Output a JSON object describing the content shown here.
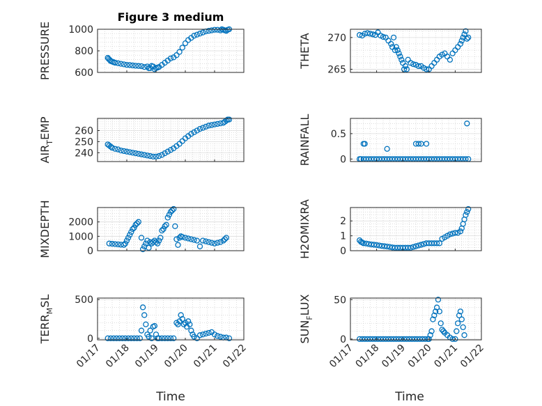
{
  "figure": {
    "title": "Figure 3 medium",
    "xlabel": "Time",
    "marker_color": "#0072BD",
    "axis_color": "#262626",
    "grid_color": "#c8c8c8"
  },
  "chart_data": [
    {
      "type": "scatter",
      "name": "pressure",
      "ylabel_text": "PRESSURE",
      "ylabel_sub": "",
      "ylabel_tail": "",
      "ylim": [
        600,
        1000
      ],
      "yticks": [
        600,
        800,
        1000
      ],
      "xlim": [
        0,
        5
      ],
      "show_x_ticklabels": false,
      "grid": true,
      "x": [
        0.35,
        0.38,
        0.42,
        0.45,
        0.5,
        0.55,
        0.6,
        0.7,
        0.8,
        0.9,
        1.0,
        1.1,
        1.2,
        1.3,
        1.4,
        1.5,
        1.6,
        1.7,
        1.75,
        1.8,
        1.85,
        1.9,
        1.95,
        2.0,
        2.05,
        2.1,
        2.2,
        2.3,
        2.4,
        2.5,
        2.6,
        2.7,
        2.8,
        2.9,
        3.0,
        3.1,
        3.2,
        3.3,
        3.4,
        3.5,
        3.6,
        3.7,
        3.8,
        3.9,
        4.0,
        4.1,
        4.2,
        4.25,
        4.3,
        4.35,
        4.4,
        4.45,
        4.5
      ],
      "y": [
        735,
        725,
        715,
        705,
        700,
        695,
        690,
        685,
        680,
        675,
        670,
        668,
        665,
        662,
        660,
        658,
        650,
        655,
        640,
        640,
        660,
        655,
        630,
        640,
        645,
        650,
        670,
        690,
        710,
        730,
        740,
        760,
        790,
        830,
        870,
        900,
        920,
        940,
        950,
        960,
        970,
        980,
        985,
        990,
        995,
        995,
        990,
        1000,
        995,
        990,
        985,
        995,
        1000
      ]
    },
    {
      "type": "scatter",
      "name": "theta",
      "ylabel_text": "THETA",
      "ylabel_sub": "",
      "ylabel_tail": "",
      "ylim": [
        264.5,
        271.3
      ],
      "yticks": [
        265,
        270
      ],
      "xlim": [
        0,
        5
      ],
      "show_x_ticklabels": false,
      "grid": true,
      "x": [
        0.35,
        0.45,
        0.55,
        0.65,
        0.75,
        0.85,
        0.95,
        1.05,
        1.15,
        1.25,
        1.35,
        1.45,
        1.55,
        1.6,
        1.65,
        1.7,
        1.75,
        1.8,
        1.85,
        1.9,
        1.95,
        2.0,
        2.05,
        2.1,
        2.15,
        2.2,
        2.3,
        2.4,
        2.5,
        2.6,
        2.7,
        2.8,
        2.9,
        3.0,
        3.1,
        3.2,
        3.3,
        3.4,
        3.5,
        3.6,
        3.7,
        3.8,
        3.9,
        4.0,
        4.1,
        4.2,
        4.25,
        4.3,
        4.35,
        4.4,
        4.45,
        4.5
      ],
      "y": [
        270.4,
        270.3,
        270.6,
        270.7,
        270.6,
        270.5,
        270.4,
        270.8,
        270.3,
        270.1,
        270.0,
        269.5,
        269.0,
        268.5,
        270.0,
        268.0,
        268.5,
        268.0,
        267.5,
        267.0,
        266.5,
        266.0,
        265.0,
        265.5,
        265.0,
        266.5,
        266.0,
        265.8,
        265.7,
        265.5,
        265.5,
        265.2,
        265.0,
        265.0,
        265.5,
        266.0,
        266.5,
        267.0,
        267.3,
        267.5,
        267.0,
        266.5,
        267.5,
        268.0,
        268.5,
        269.0,
        269.5,
        270.0,
        270.5,
        271.0,
        269.8,
        270.0
      ]
    },
    {
      "type": "scatter",
      "name": "air_temp",
      "ylabel_text": "AIR",
      "ylabel_sub": "T",
      "ylabel_tail": "EMP",
      "ylim": [
        232,
        271
      ],
      "yticks": [
        240,
        250,
        260
      ],
      "xlim": [
        0,
        5
      ],
      "show_x_ticklabels": false,
      "grid": true,
      "x": [
        0.35,
        0.4,
        0.45,
        0.5,
        0.6,
        0.7,
        0.8,
        0.9,
        1.0,
        1.1,
        1.2,
        1.3,
        1.4,
        1.5,
        1.6,
        1.7,
        1.8,
        1.9,
        2.0,
        2.1,
        2.2,
        2.3,
        2.4,
        2.5,
        2.6,
        2.7,
        2.8,
        2.9,
        3.0,
        3.1,
        3.2,
        3.3,
        3.4,
        3.5,
        3.6,
        3.7,
        3.8,
        3.9,
        4.0,
        4.1,
        4.2,
        4.3,
        4.35,
        4.4,
        4.45,
        4.5
      ],
      "y": [
        247.5,
        246.5,
        245.5,
        244.5,
        243.5,
        243.0,
        242.0,
        241.5,
        241.0,
        240.5,
        240.0,
        239.5,
        239.0,
        238.5,
        238.0,
        237.5,
        237.0,
        236.5,
        236.5,
        237.0,
        238.0,
        239.5,
        241.0,
        242.5,
        244.0,
        246.0,
        248.0,
        250.5,
        253.0,
        255.0,
        257.0,
        258.5,
        260.0,
        261.5,
        262.5,
        263.5,
        264.5,
        265.0,
        265.5,
        266.0,
        266.5,
        267.0,
        268.0,
        269.0,
        270.0,
        270.0
      ]
    },
    {
      "type": "scatter",
      "name": "rainfall",
      "ylabel_text": "RAINFALL",
      "ylabel_sub": "",
      "ylabel_tail": "",
      "ylim": [
        -0.05,
        0.8
      ],
      "yticks": [
        0,
        0.5
      ],
      "xlim": [
        0,
        5
      ],
      "show_x_ticklabels": false,
      "grid": true,
      "x": [
        0.35,
        0.4,
        0.5,
        0.6,
        0.7,
        0.8,
        0.9,
        1.0,
        1.1,
        1.2,
        1.3,
        1.4,
        1.5,
        1.6,
        1.7,
        1.8,
        1.9,
        2.0,
        2.1,
        2.2,
        2.3,
        2.4,
        2.5,
        2.6,
        2.7,
        2.8,
        2.9,
        3.0,
        3.1,
        3.2,
        3.3,
        3.4,
        3.5,
        3.6,
        3.7,
        3.8,
        3.9,
        4.0,
        4.1,
        4.2,
        4.3,
        4.4,
        4.5,
        0.5,
        0.55,
        1.4,
        2.5,
        2.6,
        2.7,
        2.9,
        4.45
      ],
      "y": [
        0,
        0,
        0,
        0,
        0,
        0,
        0,
        0,
        0,
        0,
        0,
        0,
        0,
        0,
        0,
        0,
        0,
        0,
        0,
        0,
        0,
        0,
        0,
        0,
        0,
        0,
        0,
        0,
        0,
        0,
        0,
        0,
        0,
        0,
        0,
        0,
        0,
        0,
        0,
        0,
        0,
        0,
        0,
        0.3,
        0.3,
        0.2,
        0.3,
        0.3,
        0.3,
        0.3,
        0.7
      ]
    },
    {
      "type": "scatter",
      "name": "mixdepth",
      "ylabel_text": "MIXDEPTH",
      "ylabel_sub": "",
      "ylabel_tail": "",
      "ylim": [
        0,
        3000
      ],
      "yticks": [
        0,
        1000,
        2000
      ],
      "xlim": [
        0,
        5
      ],
      "show_x_ticklabels": false,
      "grid": true,
      "x": [
        0.4,
        0.5,
        0.6,
        0.7,
        0.8,
        0.9,
        0.95,
        1.0,
        1.05,
        1.1,
        1.15,
        1.2,
        1.25,
        1.3,
        1.35,
        1.4,
        1.5,
        1.55,
        1.6,
        1.65,
        1.7,
        1.75,
        1.8,
        1.85,
        1.9,
        1.95,
        2.0,
        2.05,
        2.1,
        2.15,
        2.2,
        2.25,
        2.3,
        2.35,
        2.4,
        2.45,
        2.5,
        2.55,
        2.6,
        2.65,
        2.7,
        2.75,
        2.8,
        2.85,
        2.9,
        3.0,
        3.1,
        3.2,
        3.3,
        3.4,
        3.5,
        3.6,
        3.7,
        3.8,
        3.9,
        4.0,
        4.1,
        4.2,
        4.3,
        4.35,
        4.4
      ],
      "y": [
        500,
        480,
        460,
        440,
        420,
        400,
        500,
        700,
        900,
        1100,
        1300,
        1500,
        1600,
        1800,
        1900,
        2000,
        900,
        100,
        300,
        500,
        700,
        200,
        600,
        500,
        600,
        700,
        600,
        500,
        700,
        900,
        1400,
        1500,
        1700,
        1800,
        2300,
        2500,
        2700,
        2800,
        2900,
        1700,
        800,
        400,
        900,
        1000,
        950,
        900,
        850,
        800,
        750,
        700,
        300,
        700,
        650,
        600,
        550,
        500,
        550,
        600,
        700,
        800,
        900
      ]
    },
    {
      "type": "scatter",
      "name": "h2omixra",
      "ylabel_text": "H2OMIXRA",
      "ylabel_sub": "",
      "ylabel_tail": "",
      "ylim": [
        0,
        2.9
      ],
      "yticks": [
        0,
        1,
        2
      ],
      "xlim": [
        0,
        5
      ],
      "show_x_ticklabels": false,
      "grid": true,
      "x": [
        0.35,
        0.4,
        0.45,
        0.5,
        0.6,
        0.7,
        0.8,
        0.9,
        1.0,
        1.1,
        1.2,
        1.3,
        1.4,
        1.5,
        1.6,
        1.7,
        1.8,
        1.9,
        2.0,
        2.1,
        2.2,
        2.3,
        2.4,
        2.5,
        2.6,
        2.7,
        2.8,
        2.9,
        3.0,
        3.1,
        3.2,
        3.3,
        3.4,
        3.5,
        3.6,
        3.7,
        3.8,
        3.9,
        4.0,
        4.1,
        4.2,
        4.25,
        4.3,
        4.35,
        4.4,
        4.45,
        4.5
      ],
      "y": [
        0.7,
        0.6,
        0.55,
        0.5,
        0.48,
        0.45,
        0.42,
        0.4,
        0.38,
        0.35,
        0.32,
        0.3,
        0.28,
        0.25,
        0.22,
        0.2,
        0.2,
        0.2,
        0.2,
        0.2,
        0.2,
        0.2,
        0.25,
        0.3,
        0.35,
        0.4,
        0.45,
        0.5,
        0.5,
        0.5,
        0.5,
        0.5,
        0.5,
        0.8,
        0.9,
        1.0,
        1.1,
        1.15,
        1.2,
        1.2,
        1.3,
        1.5,
        1.8,
        2.1,
        2.4,
        2.6,
        2.8
      ]
    },
    {
      "type": "scatter",
      "name": "terr_msl",
      "ylabel_text": "TERR",
      "ylabel_sub": "M",
      "ylabel_tail": "SL",
      "ylim": [
        -20,
        520
      ],
      "yticks": [
        0,
        500
      ],
      "xlim": [
        0,
        5
      ],
      "show_x_ticklabels": true,
      "xticklabels": [
        "01/17",
        "01/18",
        "01/19",
        "01/20",
        "01/21",
        "01/22"
      ],
      "xtick_values": [
        0,
        1,
        2,
        3,
        4,
        5
      ],
      "grid": true,
      "x": [
        0.35,
        0.45,
        0.55,
        0.65,
        0.75,
        0.85,
        0.95,
        1.05,
        1.15,
        1.25,
        1.35,
        1.45,
        1.5,
        1.55,
        1.6,
        1.65,
        1.7,
        1.75,
        1.8,
        1.85,
        1.9,
        1.95,
        2.0,
        2.05,
        2.1,
        2.2,
        2.3,
        2.4,
        2.5,
        2.6,
        2.7,
        2.75,
        2.8,
        2.85,
        2.9,
        2.95,
        3.0,
        3.05,
        3.1,
        3.15,
        3.2,
        3.25,
        3.3,
        3.4,
        3.5,
        3.6,
        3.7,
        3.8,
        3.9,
        4.0,
        4.1,
        4.2,
        4.3,
        4.4,
        4.5
      ],
      "y": [
        0,
        0,
        0,
        0,
        0,
        0,
        0,
        0,
        0,
        0,
        0,
        0,
        100,
        400,
        300,
        180,
        50,
        20,
        100,
        0,
        150,
        160,
        50,
        0,
        0,
        0,
        0,
        0,
        0,
        0,
        200,
        180,
        220,
        300,
        250,
        180,
        200,
        150,
        220,
        180,
        100,
        50,
        20,
        0,
        40,
        50,
        60,
        70,
        80,
        50,
        30,
        20,
        10,
        10,
        0
      ]
    },
    {
      "type": "scatter",
      "name": "sun_flux",
      "ylabel_text": "SUN",
      "ylabel_sub": "F",
      "ylabel_tail": "LUX",
      "ylim": [
        -1,
        52
      ],
      "yticks": [
        0,
        50
      ],
      "xlim": [
        0,
        5
      ],
      "show_x_ticklabels": true,
      "xticklabels": [
        "01/17",
        "01/18",
        "01/19",
        "01/20",
        "01/21",
        "01/22"
      ],
      "xtick_values": [
        0,
        1,
        2,
        3,
        4,
        5
      ],
      "grid": true,
      "x": [
        0.35,
        0.45,
        0.55,
        0.65,
        0.75,
        0.85,
        0.95,
        1.05,
        1.15,
        1.25,
        1.35,
        1.45,
        1.55,
        1.65,
        1.75,
        1.85,
        1.95,
        2.05,
        2.15,
        2.25,
        2.35,
        2.45,
        2.55,
        2.65,
        2.75,
        2.85,
        2.95,
        3.0,
        3.05,
        3.1,
        3.15,
        3.2,
        3.25,
        3.3,
        3.35,
        3.4,
        3.45,
        3.5,
        3.55,
        3.6,
        3.7,
        3.8,
        3.9,
        4.0,
        4.05,
        4.1,
        4.15,
        4.2,
        4.25,
        4.3,
        4.35
      ],
      "y": [
        0,
        0,
        0,
        0,
        0,
        0,
        0,
        0,
        0,
        0,
        0,
        0,
        0,
        0,
        0,
        0,
        0,
        0,
        0,
        0,
        0,
        0,
        0,
        0,
        0,
        0,
        0,
        0,
        5,
        10,
        25,
        30,
        35,
        40,
        50,
        35,
        20,
        12,
        10,
        8,
        5,
        2,
        0,
        0,
        10,
        20,
        30,
        35,
        25,
        15,
        5
      ]
    }
  ]
}
